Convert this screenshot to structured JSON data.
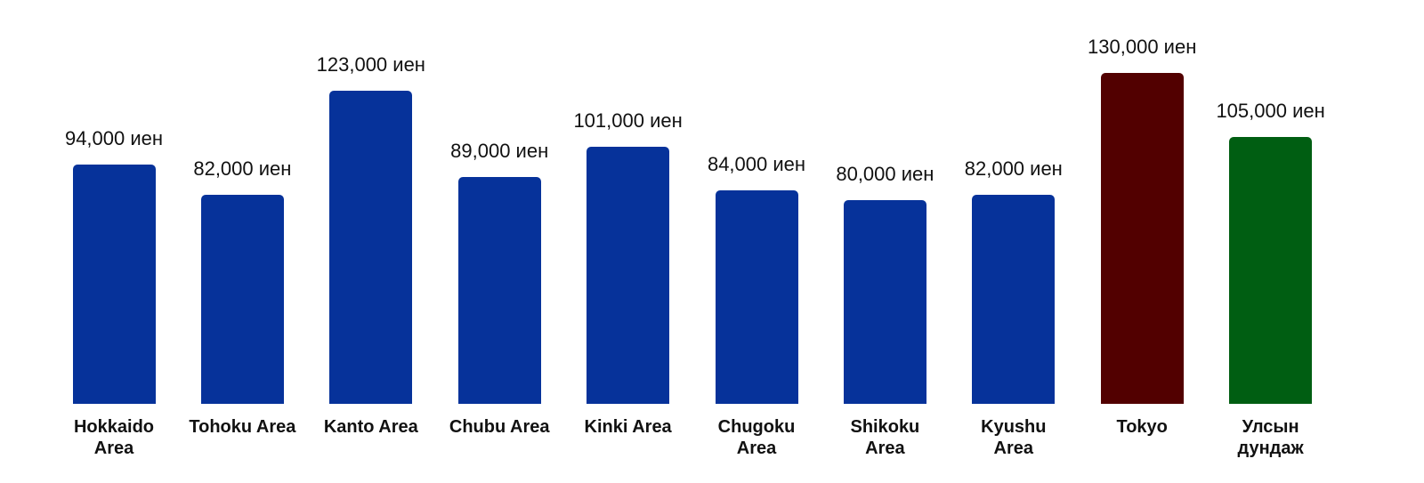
{
  "chart_data": {
    "type": "bar",
    "categories": [
      "Hokkaido Area",
      "Tohoku Area",
      "Kanto Area",
      "Chubu Area",
      "Kinki Area",
      "Chugoku Area",
      "Shikoku Area",
      "Kyushu Area",
      "Tokyo",
      "Улсын дундаж"
    ],
    "values": [
      94000,
      82000,
      123000,
      89000,
      101000,
      84000,
      80000,
      82000,
      130000,
      105000
    ],
    "value_labels": [
      "94,000 иен",
      "82,000 иен",
      "123,000 иен",
      "89,000 иен",
      "101,000 иен",
      "84,000 иен",
      "80,000 иен",
      "82,000 иен",
      "130,000 иен",
      "105,000 иен"
    ],
    "colors": [
      "#06329a",
      "#06329a",
      "#06329a",
      "#06329a",
      "#06329a",
      "#06329a",
      "#06329a",
      "#06329a",
      "#520000",
      "#005e12"
    ]
  }
}
